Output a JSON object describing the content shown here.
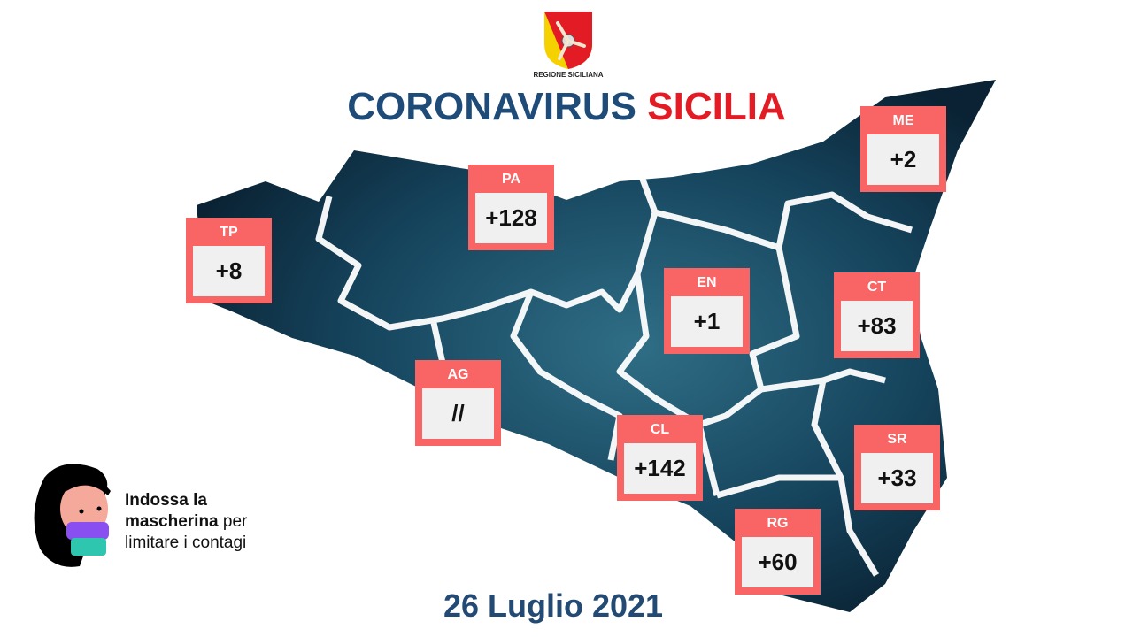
{
  "logo": {
    "text": "REGIONE SICILIANA",
    "colors": {
      "red": "#e21b25",
      "yellow": "#f6d100"
    }
  },
  "title": {
    "part1": "CORONAVIRUS",
    "part2": "SICILIA",
    "color1": "#1e4b78",
    "color2": "#e21b25"
  },
  "provinces": [
    {
      "code": "TP",
      "value": "+8"
    },
    {
      "code": "PA",
      "value": "+128"
    },
    {
      "code": "ME",
      "value": "+2"
    },
    {
      "code": "EN",
      "value": "+1"
    },
    {
      "code": "CT",
      "value": "+83"
    },
    {
      "code": "AG",
      "value": "//"
    },
    {
      "code": "CL",
      "value": "+142"
    },
    {
      "code": "SR",
      "value": "+33"
    },
    {
      "code": "RG",
      "value": "+60"
    }
  ],
  "box_color": "#f96464",
  "mask_message": {
    "bold1": "Indossa la",
    "bold2": "mascherina",
    "rest1": " per",
    "rest2": "limitare i contagi"
  },
  "date": "26 Luglio 2021"
}
